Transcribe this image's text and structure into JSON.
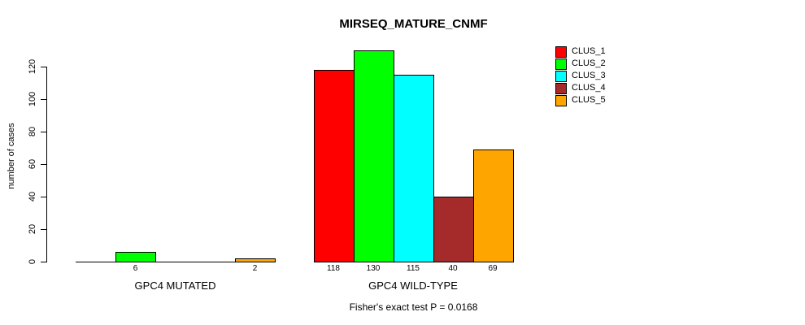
{
  "chart_data": {
    "type": "bar",
    "title": "MIRSEQ_MATURE_CNMF",
    "ylabel": "number of cases",
    "xlabel": "",
    "categories": [
      "GPC4 MUTATED",
      "GPC4 WILD-TYPE"
    ],
    "series": [
      {
        "name": "CLUS_1",
        "color": "#FF0000",
        "values": [
          0,
          118
        ]
      },
      {
        "name": "CLUS_2",
        "color": "#00FF00",
        "values": [
          6,
          130
        ]
      },
      {
        "name": "CLUS_3",
        "color": "#00FFFF",
        "values": [
          0,
          115
        ]
      },
      {
        "name": "CLUS_4",
        "color": "#A52A2A",
        "values": [
          0,
          40
        ]
      },
      {
        "name": "CLUS_5",
        "color": "#FFA500",
        "values": [
          2,
          69
        ]
      }
    ],
    "yticks": [
      0,
      20,
      40,
      60,
      80,
      100,
      120
    ],
    "ylim": [
      0,
      130
    ],
    "grid": false,
    "legend_position": "top-right",
    "bar_value_labels": "shown under each nonzero bar",
    "annotation": "Fisher's exact test P = 0.0168"
  }
}
